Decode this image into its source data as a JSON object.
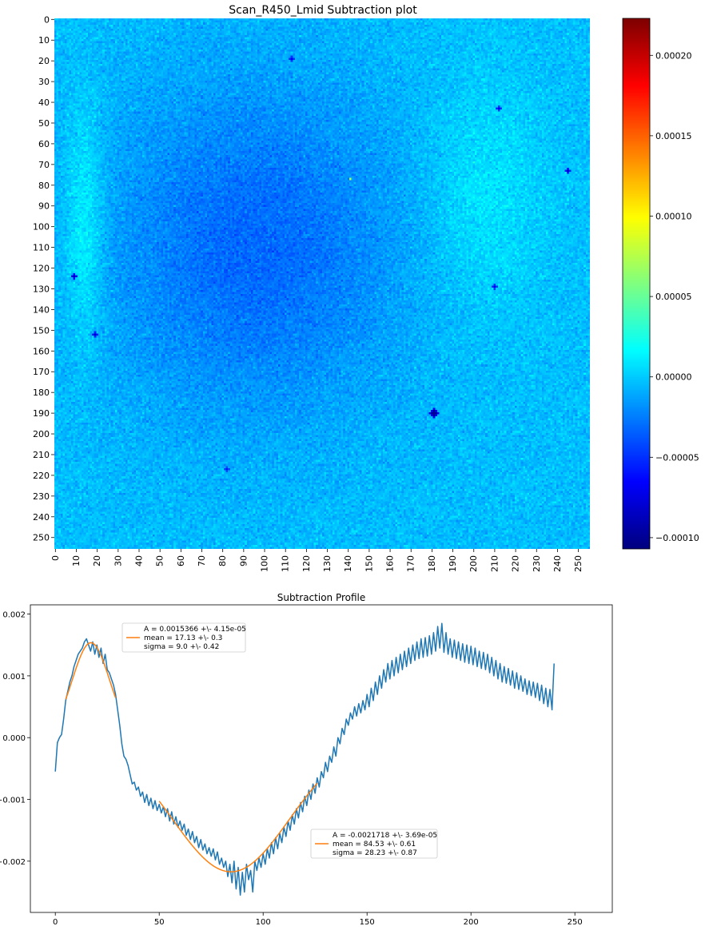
{
  "chart_data": [
    {
      "type": "heatmap",
      "title": "Scan_R450_Lmid Subtraction plot",
      "xlabel": "",
      "ylabel": "",
      "grid": false,
      "colormap": "jet",
      "rows": 256,
      "cols": 256,
      "x_ticks": [
        0,
        10,
        20,
        30,
        40,
        50,
        60,
        70,
        80,
        90,
        100,
        110,
        120,
        130,
        140,
        150,
        160,
        170,
        180,
        190,
        200,
        210,
        220,
        230,
        240,
        250
      ],
      "y_ticks": [
        0,
        10,
        20,
        30,
        40,
        50,
        60,
        70,
        80,
        90,
        100,
        110,
        120,
        130,
        140,
        150,
        160,
        170,
        180,
        190,
        200,
        210,
        220,
        230,
        240,
        250
      ],
      "colorbar": {
        "vmin": -0.000107,
        "vmax": 0.000223,
        "ticks": [
          {
            "value": 0.0002,
            "label": "0.00020"
          },
          {
            "value": 0.00015,
            "label": "0.00015"
          },
          {
            "value": 0.0001,
            "label": "0.00010"
          },
          {
            "value": 5e-05,
            "label": "0.00005"
          },
          {
            "value": 0.0,
            "label": "0.00000"
          },
          {
            "value": -5e-05,
            "label": "−0.00005"
          },
          {
            "value": -0.0001,
            "label": "−0.00010"
          }
        ]
      },
      "features": {
        "typical_range": [
          -6e-05,
          4e-05
        ],
        "hot_spots": [
          {
            "col": 141,
            "row": 77,
            "value": 0.0001
          },
          {
            "col": 8,
            "row": 73,
            "value": 4e-05
          },
          {
            "col": 225,
            "row": 231,
            "value": 2e-05
          }
        ],
        "cold_spots": [
          {
            "col": 181,
            "row": 190,
            "value": -0.0001
          },
          {
            "col": 9,
            "row": 124,
            "value": -9e-05
          },
          {
            "col": 19,
            "row": 152,
            "value": -8e-05
          },
          {
            "col": 210,
            "row": 129,
            "value": -7e-05
          },
          {
            "col": 245,
            "row": 73,
            "value": -8e-05
          },
          {
            "col": 212,
            "row": 43,
            "value": -7e-05
          },
          {
            "col": 113,
            "row": 19,
            "value": -7e-05
          },
          {
            "col": 82,
            "row": 217,
            "value": -6e-05
          }
        ]
      }
    },
    {
      "type": "line",
      "title": "Subtraction Profile",
      "xlabel": "",
      "ylabel": "",
      "xlim": [
        -12,
        268
      ],
      "ylim": [
        -0.00283,
        0.00215
      ],
      "grid": false,
      "x_ticks": [
        {
          "value": 0,
          "label": "0"
        },
        {
          "value": 50,
          "label": "50"
        },
        {
          "value": 100,
          "label": "100"
        },
        {
          "value": 150,
          "label": "150"
        },
        {
          "value": 200,
          "label": "200"
        },
        {
          "value": 250,
          "label": "250"
        }
      ],
      "y_ticks": [
        {
          "value": 0.002,
          "label": "0.002"
        },
        {
          "value": 0.001,
          "label": "0.001"
        },
        {
          "value": 0.0,
          "label": "0.000"
        },
        {
          "value": -0.001,
          "label": "−0.001"
        },
        {
          "value": -0.002,
          "label": "−0.002"
        }
      ],
      "series": [
        {
          "color": "#1f77b4",
          "x_start": 0,
          "x_step": 1,
          "values": [
            -0.00055,
            -8e-05,
            0.0,
            5e-05,
            0.0003,
            0.0006,
            0.00075,
            0.0009,
            0.001,
            0.00115,
            0.00125,
            0.00135,
            0.0014,
            0.00145,
            0.00155,
            0.0016,
            0.0015,
            0.0014,
            0.00155,
            0.00135,
            0.0015,
            0.0013,
            0.00145,
            0.0012,
            0.00135,
            0.0011,
            0.00105,
            0.00095,
            0.00085,
            0.0007,
            0.00045,
            0.0002,
            -0.0001,
            -0.0003,
            -0.00035,
            -0.00045,
            -0.0006,
            -0.00075,
            -0.00072,
            -0.00085,
            -0.0008,
            -0.00095,
            -0.00088,
            -0.00105,
            -0.00092,
            -0.0011,
            -0.00098,
            -0.00115,
            -0.00102,
            -0.00118,
            -0.00108,
            -0.00122,
            -0.00112,
            -0.00128,
            -0.00115,
            -0.00135,
            -0.0012,
            -0.0014,
            -0.00128,
            -0.00145,
            -0.00135,
            -0.0015,
            -0.0014,
            -0.00158,
            -0.00148,
            -0.00165,
            -0.00152,
            -0.0017,
            -0.0016,
            -0.00178,
            -0.00165,
            -0.00182,
            -0.00172,
            -0.00188,
            -0.00178,
            -0.00192,
            -0.0018,
            -0.00198,
            -0.00185,
            -0.00205,
            -0.00195,
            -0.0021,
            -0.002,
            -0.00225,
            -0.00205,
            -0.00235,
            -0.002,
            -0.00245,
            -0.0021,
            -0.00255,
            -0.00218,
            -0.0025,
            -0.00205,
            -0.0023,
            -0.00215,
            -0.0025,
            -0.002,
            -0.00215,
            -0.00195,
            -0.0021,
            -0.00188,
            -0.00205,
            -0.0018,
            -0.00195,
            -0.0017,
            -0.00188,
            -0.00162,
            -0.0018,
            -0.00155,
            -0.0017,
            -0.00145,
            -0.0016,
            -0.00135,
            -0.0015,
            -0.00125,
            -0.0014,
            -0.00115,
            -0.0013,
            -0.00105,
            -0.0012,
            -0.00095,
            -0.0011,
            -0.00085,
            -0.001,
            -0.00075,
            -0.0009,
            -0.00065,
            -0.0008,
            -0.00055,
            -0.00065,
            -0.0004,
            -0.00055,
            -0.0003,
            -0.0004,
            -0.00015,
            -0.0003,
            0.0,
            -0.0001,
            0.00015,
            5e-05,
            0.0003,
            0.0002,
            0.0004,
            0.0003,
            0.0005,
            0.00035,
            0.00055,
            0.0004,
            0.0006,
            0.00045,
            0.0007,
            0.0005,
            0.0008,
            0.0006,
            0.0009,
            0.0007,
            0.001,
            0.0008,
            0.0011,
            0.0009,
            0.0012,
            0.00095,
            0.00125,
            0.001,
            0.0013,
            0.00105,
            0.00135,
            0.0011,
            0.0014,
            0.00115,
            0.00145,
            0.0012,
            0.0015,
            0.00125,
            0.00155,
            0.00128,
            0.0016,
            0.0013,
            0.00162,
            0.00132,
            0.00165,
            0.00135,
            0.0017,
            0.0014,
            0.0018,
            0.00145,
            0.00185,
            0.00138,
            0.0017,
            0.00135,
            0.0016,
            0.0013,
            0.00158,
            0.00128,
            0.00155,
            0.00125,
            0.00152,
            0.00122,
            0.0015,
            0.0012,
            0.00148,
            0.00118,
            0.00145,
            0.00115,
            0.0014,
            0.00112,
            0.00138,
            0.0011,
            0.00135,
            0.00105,
            0.0013,
            0.001,
            0.00125,
            0.00095,
            0.0012,
            0.0009,
            0.00115,
            0.00088,
            0.00112,
            0.00085,
            0.00108,
            0.0008,
            0.00105,
            0.00078,
            0.001,
            0.00075,
            0.00095,
            0.0007,
            0.00092,
            0.00068,
            0.0009,
            0.00065,
            0.00088,
            0.0006,
            0.00085,
            0.00055,
            0.0008,
            0.0005,
            0.00078,
            0.00045,
            0.0012
          ]
        },
        {
          "color": "#ff7f0e",
          "model": "gaussian",
          "x_start": 5,
          "x_end": 29,
          "A": 0.0015366,
          "mean": 17.13,
          "sigma": 9.0
        },
        {
          "color": "#ff7f0e",
          "model": "gaussian",
          "x_start": 50,
          "x_end": 126,
          "A": -0.0021718,
          "mean": 84.53,
          "sigma": 28.23
        }
      ],
      "annotations": [
        {
          "line1": "A = 0.0015366 +\\- 4.15e-05",
          "line2": "mean = 17.13 +\\- 0.3",
          "line3": "sigma = 9.0 +\\- 0.42"
        },
        {
          "line1": "A = -0.0021718 +\\- 3.69e-05",
          "line2": "mean = 84.53 +\\- 0.61",
          "line3": "sigma = 28.23 +\\- 0.87"
        }
      ]
    }
  ]
}
